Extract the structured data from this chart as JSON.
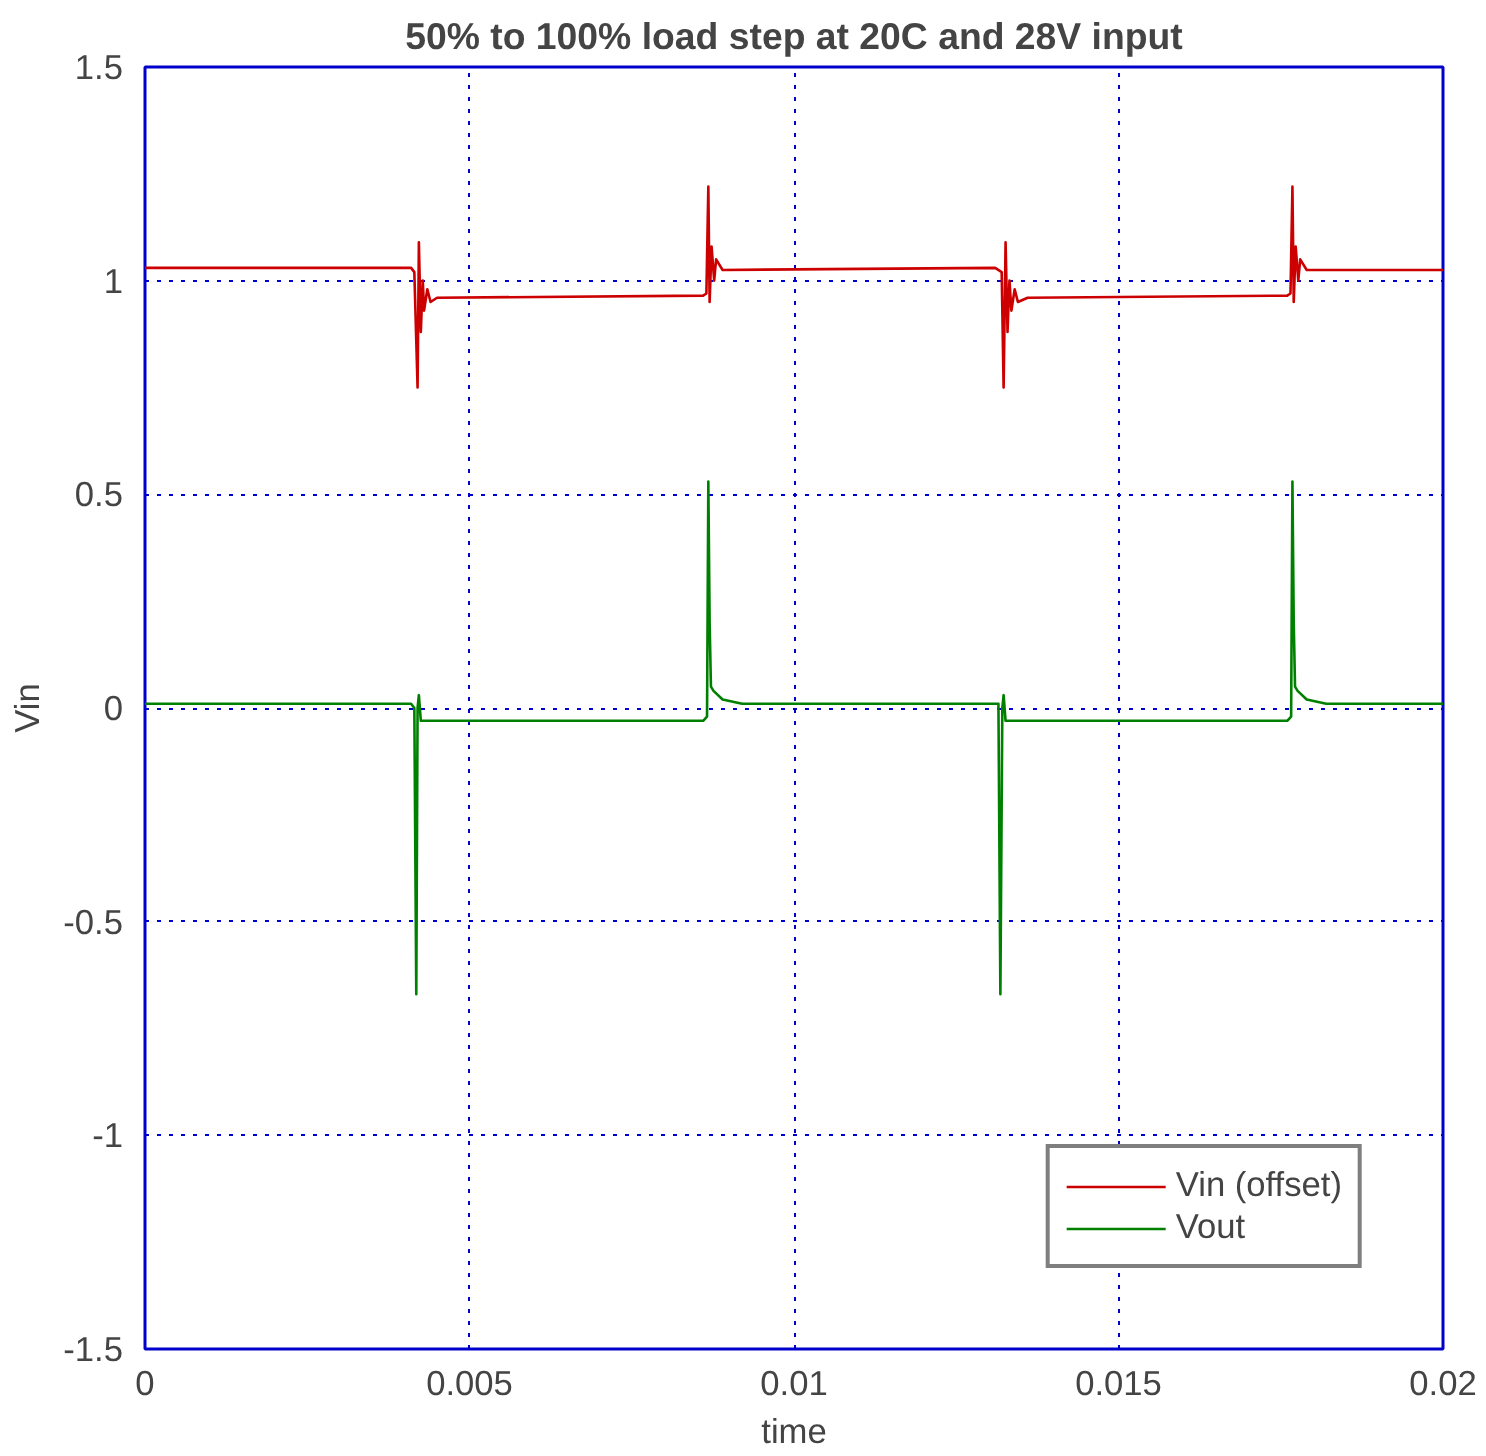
{
  "chart_data": {
    "type": "line",
    "title": "50% to 100% load step at 20C and 28V input",
    "xlabel": "time",
    "ylabel": "Vin",
    "xlim": [
      0,
      0.02
    ],
    "ylim": [
      -1.5,
      1.5
    ],
    "xticks": [
      0,
      0.005,
      0.01,
      0.015,
      0.02
    ],
    "yticks": [
      -1.5,
      -1,
      -0.5,
      0,
      0.5,
      1,
      1.5
    ],
    "grid": true,
    "legend": "bottom right",
    "marker": "none",
    "line_style": "solid",
    "series": [
      {
        "name": "Vin (offset)",
        "color": "#cc0000",
        "x": [
          0,
          0.0041,
          0.00415,
          0.0042,
          0.00422,
          0.00425,
          0.00428,
          0.0043,
          0.00435,
          0.0044,
          0.0045,
          0.0086,
          0.00865,
          0.00868,
          0.0087,
          0.00873,
          0.00877,
          0.0088,
          0.0089,
          0.0131,
          0.0132,
          0.01323,
          0.01326,
          0.01329,
          0.01332,
          0.01335,
          0.0134,
          0.01345,
          0.0136,
          0.0176,
          0.01765,
          0.01768,
          0.0177,
          0.01773,
          0.01777,
          0.0178,
          0.0179,
          0.02
        ],
        "values": [
          1.03,
          1.03,
          1.02,
          0.75,
          1.09,
          0.88,
          1.0,
          0.93,
          0.98,
          0.95,
          0.96,
          0.965,
          0.97,
          1.22,
          0.95,
          1.08,
          1.0,
          1.05,
          1.025,
          1.03,
          1.02,
          0.75,
          1.09,
          0.88,
          1.0,
          0.93,
          0.98,
          0.95,
          0.96,
          0.965,
          0.97,
          1.22,
          0.95,
          1.08,
          1.0,
          1.05,
          1.025,
          1.025
        ]
      },
      {
        "name": "Vout",
        "color": "#008000",
        "x": [
          0,
          0.0041,
          0.00415,
          0.00418,
          0.0042,
          0.00422,
          0.00425,
          0.0086,
          0.00866,
          0.00868,
          0.0087,
          0.00872,
          0.00876,
          0.0089,
          0.0092,
          0.01315,
          0.01318,
          0.01321,
          0.01323,
          0.01326,
          0.0176,
          0.01766,
          0.01768,
          0.0177,
          0.01772,
          0.01776,
          0.0179,
          0.0182,
          0.02
        ],
        "values": [
          0.01,
          0.01,
          0.0,
          -0.67,
          0.0,
          0.03,
          -0.03,
          -0.03,
          -0.02,
          0.53,
          0.2,
          0.05,
          0.04,
          0.02,
          0.01,
          0.01,
          -0.67,
          0.0,
          0.03,
          -0.03,
          -0.03,
          -0.02,
          0.53,
          0.2,
          0.05,
          0.04,
          0.02,
          0.01,
          0.01
        ]
      }
    ]
  }
}
